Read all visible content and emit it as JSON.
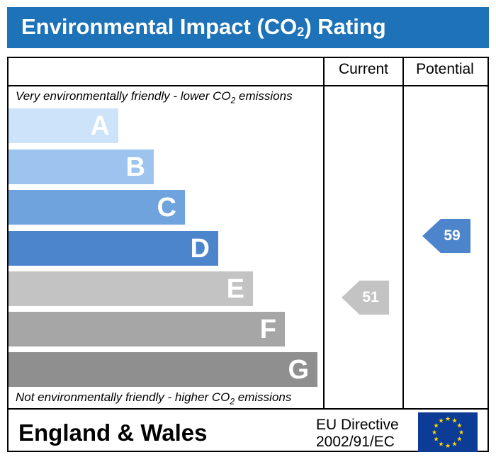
{
  "title": {
    "text": "Environmental Impact (CO",
    "subscript": "2",
    "suffix": ") Rating"
  },
  "columns": {
    "current": "Current",
    "potential": "Potential"
  },
  "captions": {
    "top_pre": "Very environmentally friendly - lower CO",
    "top_sub": "2",
    "top_post": " emissions",
    "bottom_pre": "Not environmentally friendly - higher CO",
    "bottom_sub": "2",
    "bottom_post": " emissions"
  },
  "chart_data": {
    "type": "bar",
    "categories": [
      "A",
      "B",
      "C",
      "D",
      "E",
      "F",
      "G"
    ],
    "band_colors": [
      "#cce3fa",
      "#9cc4ee",
      "#6ea3dd",
      "#4d85cc",
      "#c3c3c3",
      "#a6a6a6",
      "#8f8f8f"
    ],
    "current": {
      "value": 51,
      "color": "#c3c3c3"
    },
    "potential": {
      "value": 59,
      "color": "#4d85cc"
    }
  },
  "footer": {
    "region": "England & Wales",
    "directive_line1": "EU Directive",
    "directive_line2": "2002/91/EC",
    "flag_color": "#0d3c96",
    "star_color": "#ffdd00"
  }
}
